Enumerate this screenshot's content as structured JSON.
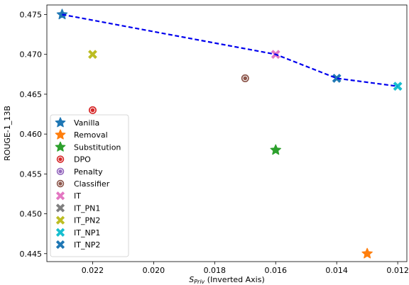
{
  "chart_data": {
    "type": "scatter",
    "xlabel_main": "S",
    "xlabel_sub": "Priv",
    "xlabel_suffix": " (Inverted Axis)",
    "ylabel": "ROUGE-1_13B",
    "xlim": [
      0.0235,
      0.0117
    ],
    "ylim": [
      0.444,
      0.4762
    ],
    "x_inverted": true,
    "x_ticks": [
      0.022,
      0.02,
      0.018,
      0.016,
      0.014,
      0.012
    ],
    "x_tick_labels": [
      "0.022",
      "0.020",
      "0.018",
      "0.016",
      "0.014",
      "0.012"
    ],
    "y_ticks": [
      0.445,
      0.45,
      0.455,
      0.46,
      0.465,
      0.47,
      0.475
    ],
    "y_tick_labels": [
      "0.445",
      "0.450",
      "0.455",
      "0.460",
      "0.465",
      "0.470",
      "0.475"
    ],
    "grid": false,
    "legend_position": "lower-left",
    "series": [
      {
        "name": "Vanilla",
        "marker": "star",
        "color": "#1f77b4",
        "points": [
          {
            "x": 0.023,
            "y": 0.475
          }
        ]
      },
      {
        "name": "Removal",
        "marker": "star",
        "color": "#ff7f0e",
        "points": [
          {
            "x": 0.013,
            "y": 0.445
          }
        ]
      },
      {
        "name": "Substitution",
        "marker": "star",
        "color": "#2ca02c",
        "points": [
          {
            "x": 0.016,
            "y": 0.458
          }
        ]
      },
      {
        "name": "DPO",
        "marker": "circle-ring",
        "color": "#d62728",
        "points": [
          {
            "x": 0.022,
            "y": 0.463
          }
        ]
      },
      {
        "name": "Penalty",
        "marker": "circle-ring",
        "color": "#9467bd",
        "points": []
      },
      {
        "name": "Classifier",
        "marker": "circle-ring",
        "color": "#8c564b",
        "points": [
          {
            "x": 0.017,
            "y": 0.467
          }
        ]
      },
      {
        "name": "IT",
        "marker": "x",
        "color": "#e377c2",
        "points": [
          {
            "x": 0.016,
            "y": 0.47
          }
        ]
      },
      {
        "name": "IT_PN1",
        "marker": "x",
        "color": "#7f7f7f",
        "points": []
      },
      {
        "name": "IT_PN2",
        "marker": "x",
        "color": "#bcbd22",
        "points": [
          {
            "x": 0.022,
            "y": 0.47
          }
        ]
      },
      {
        "name": "IT_NP1",
        "marker": "x",
        "color": "#17becf",
        "points": [
          {
            "x": 0.012,
            "y": 0.466
          }
        ]
      },
      {
        "name": "IT_NP2",
        "marker": "x",
        "color": "#1f77b4",
        "points": [
          {
            "x": 0.014,
            "y": 0.467
          }
        ]
      }
    ],
    "frontier_line": {
      "color": "#0000ee",
      "style": "dashed",
      "points": [
        {
          "x": 0.023,
          "y": 0.475
        },
        {
          "x": 0.016,
          "y": 0.47
        },
        {
          "x": 0.014,
          "y": 0.467
        },
        {
          "x": 0.012,
          "y": 0.466
        }
      ]
    }
  }
}
